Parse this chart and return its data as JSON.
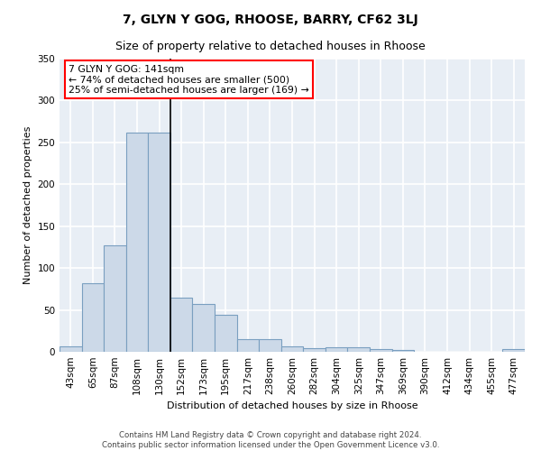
{
  "title": "7, GLYN Y GOG, RHOOSE, BARRY, CF62 3LJ",
  "subtitle": "Size of property relative to detached houses in Rhoose",
  "xlabel": "Distribution of detached houses by size in Rhoose",
  "ylabel": "Number of detached properties",
  "categories": [
    "43sqm",
    "65sqm",
    "87sqm",
    "108sqm",
    "130sqm",
    "152sqm",
    "173sqm",
    "195sqm",
    "217sqm",
    "238sqm",
    "260sqm",
    "282sqm",
    "304sqm",
    "325sqm",
    "347sqm",
    "369sqm",
    "390sqm",
    "412sqm",
    "434sqm",
    "455sqm",
    "477sqm"
  ],
  "values": [
    6,
    82,
    127,
    262,
    262,
    65,
    57,
    44,
    15,
    15,
    6,
    4,
    5,
    5,
    3,
    2,
    0,
    0,
    0,
    0,
    3
  ],
  "bar_color": "#ccd9e8",
  "bar_edge_color": "#7a9fc0",
  "vline_x": 4.5,
  "annotation_line1": "7 GLYN Y GOG: 141sqm",
  "annotation_line2": "← 74% of detached houses are smaller (500)",
  "annotation_line3": "25% of semi-detached houses are larger (169) →",
  "ylim": [
    0,
    350
  ],
  "yticks": [
    0,
    50,
    100,
    150,
    200,
    250,
    300,
    350
  ],
  "bg_color": "#e8eef5",
  "grid_color": "#ffffff",
  "title_fontsize": 10,
  "subtitle_fontsize": 9,
  "axis_fontsize": 7.5,
  "footer_text": "Contains HM Land Registry data © Crown copyright and database right 2024.\nContains public sector information licensed under the Open Government Licence v3.0."
}
